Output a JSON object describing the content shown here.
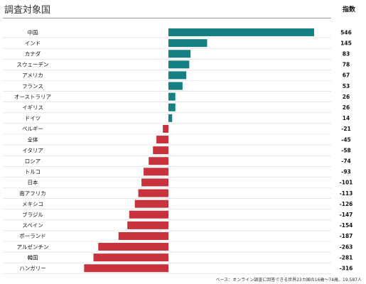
{
  "title": "調査対象国",
  "column_header": "指数",
  "footnote": "ベース：オンライン調査に回答できる世界23カ国の16歳～74歳、19,587人",
  "colors": {
    "positive": "#157f83",
    "negative": "#c8323c",
    "separator": "#d9d9d9",
    "rule": "#9a9a9a"
  },
  "chart_data": {
    "type": "bar",
    "orientation": "horizontal",
    "title": "",
    "xlabel": "",
    "ylabel": "",
    "categories": [
      "中国",
      "インド",
      "カナダ",
      "スウェーデン",
      "アメリカ",
      "フランス",
      "オーストラリア",
      "イギリス",
      "ドイツ",
      "ベルギー",
      "全体",
      "イタリア",
      "ロシア",
      "トルコ",
      "日本",
      "南アフリカ",
      "メキシコ",
      "ブラジル",
      "スペイン",
      "ポーランド",
      "アルゼンチン",
      "韓国",
      "ハンガリー"
    ],
    "values": [
      546,
      145,
      83,
      78,
      67,
      53,
      26,
      26,
      14,
      -21,
      -45,
      -58,
      -74,
      -93,
      -101,
      -113,
      -126,
      -147,
      -154,
      -187,
      -263,
      -281,
      -316
    ],
    "value_labels": [
      "546",
      "145",
      "83",
      "78",
      "67",
      "53",
      "26",
      "26",
      "14",
      "-21",
      "-45",
      "-58",
      "-74",
      "-93",
      "-101",
      "-113",
      "-126",
      "-147",
      "-154",
      "-187",
      "-263",
      "-281",
      "-316"
    ],
    "xlim": [
      -316,
      546
    ],
    "grid": false,
    "legend": "none"
  }
}
